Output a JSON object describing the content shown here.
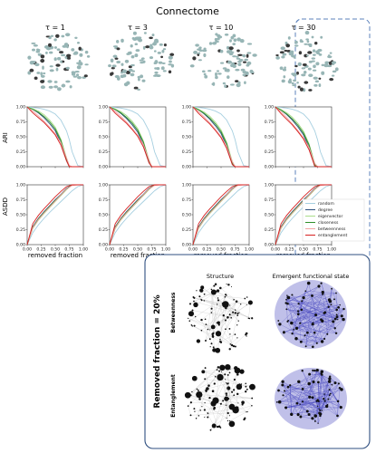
{
  "figure": {
    "title": "Connectome",
    "ylabels": [
      "ARI",
      "ASDD"
    ],
    "xlabel": "removed fraction",
    "inset": {
      "row_group_label": "Removed fraction = 20%",
      "col_labels": [
        "Structure",
        "Emergent functional state"
      ],
      "row_labels": [
        "Betweenness",
        "Entanglement"
      ]
    },
    "colors": {
      "random": "#a6cfe0",
      "degree": "#2c4f7c",
      "eigenvector": "#a9dc8a",
      "closeness": "#2f8f2a",
      "betweenness": "#f2a3a3",
      "entanglement": "#d62020",
      "highlight_border": "#5b82bb",
      "node_color": "#97b5b5",
      "network_blue": "#4a4ac0"
    }
  },
  "chart_data": [
    {
      "type": "line",
      "panel": "ARI",
      "taus": [
        "τ = 1",
        "τ = 3",
        "τ = 10",
        "τ = 30"
      ],
      "xlabel": "removed fraction",
      "ylabel": "ARI",
      "xlim": [
        0.0,
        1.0
      ],
      "ylim": [
        0.0,
        1.0
      ],
      "xticks": [
        "0.00",
        "0.25",
        "0.50",
        "0.75",
        "1.00"
      ],
      "yticks": [
        "0.00",
        "0.25",
        "0.50",
        "0.75",
        "1.00"
      ],
      "legend_position": "right",
      "x": [
        0.0,
        0.1,
        0.2,
        0.3,
        0.4,
        0.5,
        0.6,
        0.7,
        0.75,
        0.8,
        0.9,
        1.0
      ],
      "series": [
        {
          "name": "random",
          "values": [
            1.0,
            0.99,
            0.98,
            0.96,
            0.93,
            0.88,
            0.78,
            0.6,
            0.45,
            0.25,
            0.02,
            0.0
          ]
        },
        {
          "name": "degree",
          "values": [
            1.0,
            0.96,
            0.9,
            0.82,
            0.72,
            0.6,
            0.4,
            0.1,
            0.0,
            0.0,
            0.0,
            0.0
          ]
        },
        {
          "name": "eigenvector",
          "values": [
            1.0,
            0.97,
            0.93,
            0.87,
            0.78,
            0.66,
            0.46,
            0.15,
            0.0,
            0.0,
            0.0,
            0.0
          ]
        },
        {
          "name": "closeness",
          "values": [
            1.0,
            0.96,
            0.91,
            0.84,
            0.75,
            0.63,
            0.44,
            0.12,
            0.0,
            0.0,
            0.0,
            0.0
          ]
        },
        {
          "name": "betweenness",
          "values": [
            1.0,
            0.93,
            0.85,
            0.76,
            0.66,
            0.55,
            0.4,
            0.15,
            0.02,
            0.0,
            0.0,
            0.0
          ]
        },
        {
          "name": "entanglement",
          "values": [
            1.0,
            0.9,
            0.82,
            0.74,
            0.64,
            0.53,
            0.36,
            0.1,
            0.0,
            0.0,
            0.0,
            0.0
          ]
        }
      ]
    },
    {
      "type": "line",
      "panel": "ASDD",
      "taus": [
        "τ = 1",
        "τ = 3",
        "τ = 10",
        "τ = 30"
      ],
      "xlabel": "removed fraction",
      "ylabel": "ASDD",
      "xlim": [
        0.0,
        1.0
      ],
      "ylim": [
        0.0,
        1.0
      ],
      "xticks": [
        "0.00",
        "0.25",
        "0.50",
        "0.75",
        "1.00"
      ],
      "yticks": [
        "0.00",
        "0.25",
        "0.50",
        "0.75",
        "1.00"
      ],
      "x": [
        0.0,
        0.1,
        0.2,
        0.3,
        0.4,
        0.5,
        0.6,
        0.7,
        0.8,
        0.9,
        1.0
      ],
      "series": [
        {
          "name": "random",
          "values": [
            0.0,
            0.2,
            0.33,
            0.44,
            0.54,
            0.63,
            0.72,
            0.81,
            0.9,
            0.97,
            1.0
          ]
        },
        {
          "name": "degree",
          "values": [
            0.0,
            0.3,
            0.44,
            0.55,
            0.65,
            0.75,
            0.84,
            0.94,
            1.0,
            1.0,
            1.0
          ]
        },
        {
          "name": "eigenvector",
          "values": [
            0.0,
            0.27,
            0.41,
            0.52,
            0.62,
            0.72,
            0.82,
            0.92,
            1.0,
            1.0,
            1.0
          ]
        },
        {
          "name": "closeness",
          "values": [
            0.0,
            0.29,
            0.43,
            0.54,
            0.64,
            0.74,
            0.83,
            0.93,
            1.0,
            1.0,
            1.0
          ]
        },
        {
          "name": "betweenness",
          "values": [
            0.0,
            0.28,
            0.42,
            0.53,
            0.63,
            0.73,
            0.83,
            0.93,
            0.99,
            1.0,
            1.0
          ]
        },
        {
          "name": "entanglement",
          "values": [
            0.0,
            0.35,
            0.49,
            0.6,
            0.7,
            0.8,
            0.89,
            0.97,
            1.0,
            1.0,
            1.0
          ]
        }
      ]
    }
  ]
}
